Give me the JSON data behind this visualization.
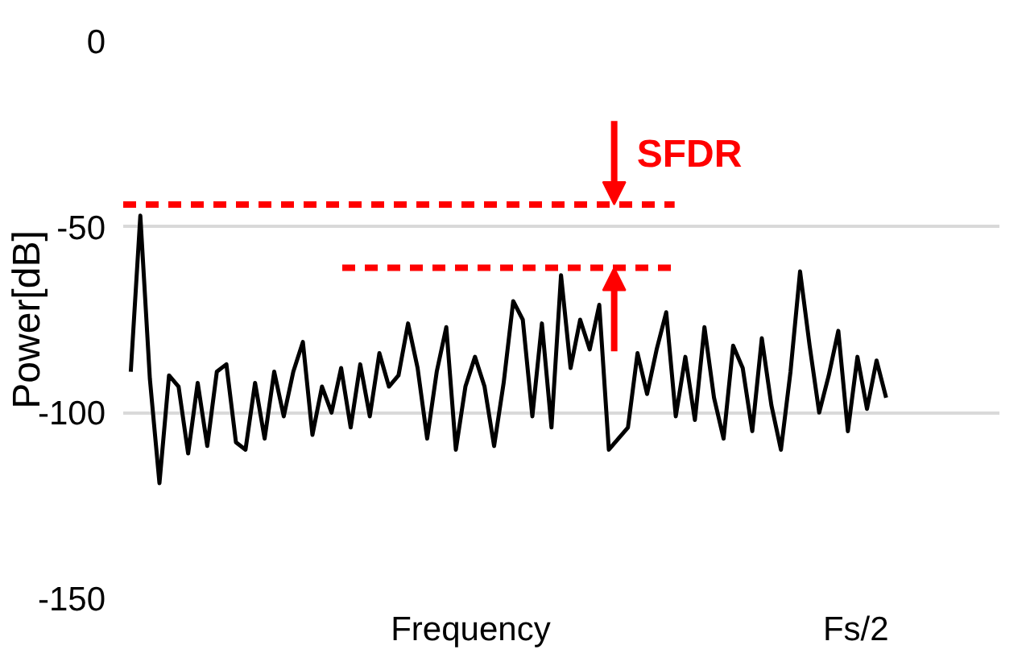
{
  "chart_data": {
    "type": "line",
    "xlabel": "Frequency",
    "ylabel": "Power[dB]",
    "categories": [
      null,
      null,
      null,
      null,
      null,
      null,
      null,
      null,
      null,
      null,
      null,
      null,
      null,
      null,
      null,
      null,
      null,
      null,
      null,
      null,
      null,
      null,
      null,
      null,
      null,
      null,
      null,
      null,
      null,
      null,
      null,
      null,
      null,
      null,
      null,
      null,
      null,
      null,
      null,
      null,
      null,
      null,
      null,
      null,
      null,
      null,
      null,
      null,
      null,
      null,
      null,
      null,
      null,
      null,
      null,
      null,
      null,
      null,
      null,
      null,
      null,
      null,
      null,
      null,
      null,
      null,
      null,
      null,
      null,
      null,
      null,
      null,
      null,
      null,
      null,
      null,
      null,
      null,
      null,
      null
    ],
    "ylim": [
      -150,
      0
    ],
    "yticks": [
      0,
      -50,
      -100,
      -150
    ],
    "grid": "y",
    "line_style": "solid",
    "series": [
      {
        "color": "#000000",
        "values": [
          -89,
          -47,
          -91,
          -119,
          -90,
          -93,
          -111,
          -92,
          -109,
          -89,
          -87,
          -108,
          -110,
          -92,
          -107,
          -89,
          -101,
          -89,
          -81,
          -106,
          -93,
          -100,
          -88,
          -104,
          -87,
          -101,
          -84,
          -93,
          -90,
          -76,
          -88,
          -107,
          -89,
          -77,
          -110,
          -93,
          -85,
          -93,
          -109,
          -92,
          -70,
          -75,
          -101,
          -76,
          -104,
          -63,
          -88,
          -75,
          -83,
          -71,
          -110,
          -107,
          -104,
          -84,
          -95,
          -83,
          -73,
          -101,
          -85,
          -102,
          -77,
          -96,
          -107,
          -82,
          -88,
          -105,
          -80,
          -98,
          -110,
          -89,
          -62,
          -82,
          -100,
          -90,
          -78,
          -105,
          -85,
          -99,
          -86,
          -96
        ]
      }
    ],
    "ref_lines": [
      {
        "axis": "y",
        "value": -44,
        "color": "#ff0000",
        "line_style": "dashed"
      },
      {
        "axis": "y",
        "value": -61,
        "color": "#ff0000",
        "line_style": "dashed"
      }
    ],
    "annotations": [
      "SFDR",
      "Fs/2"
    ]
  }
}
